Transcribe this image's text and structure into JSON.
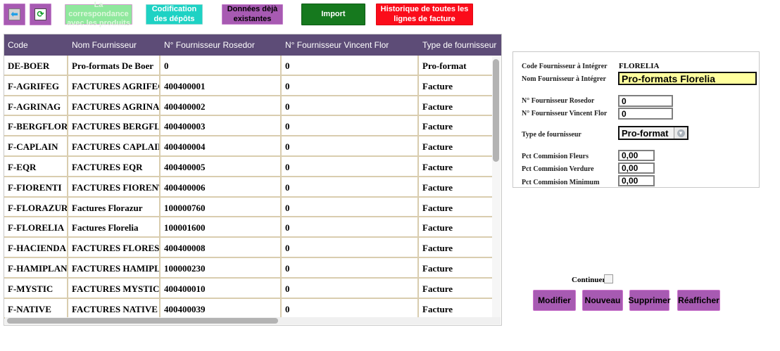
{
  "toolbar": {
    "back_icon": "left-arrow",
    "refresh_icon": "refresh",
    "correspondance_label": "La correspondance avec les produits",
    "codification_label": "Codification des dépôts",
    "donnees_label": "Données dèjà existantes",
    "import_label": "Import",
    "historique_label": "Historique de toutes les lignes de facture"
  },
  "colors": {
    "toolbar_purple": "#a75ab2",
    "toolbar_light_green": "#8fe89d",
    "toolbar_cyan": "#1ed2c4",
    "toolbar_dark_green": "#16791e",
    "toolbar_red": "#fb0c1a",
    "table_header_purple": "#5d4c77",
    "table_grid_tan": "#d9cdaf",
    "nom_field_yellow": "#ffff9e",
    "action_button_purple": "#a75ab2"
  },
  "table": {
    "columns": [
      "Code",
      "Nom Fournisseur",
      "N° Fournisseur Rosedor",
      "N° Fournisseur Vincent Flor",
      "Type de fournisseur"
    ],
    "rows": [
      [
        "DE-BOER",
        "Pro-formats De Boer",
        "0",
        "0",
        "Pro-format"
      ],
      [
        "F-AGRIFEG",
        "FACTURES AGRIFEG",
        "400400001",
        "0",
        "Facture"
      ],
      [
        "F-AGRINAG",
        "FACTURES AGRINAG",
        "400400002",
        "0",
        "Facture"
      ],
      [
        "F-BERGFLOR",
        "FACTURES BERGFLO",
        "400400003",
        "0",
        "Facture"
      ],
      [
        "F-CAPLAIN",
        "FACTURES CAPLAIN",
        "400400004",
        "0",
        "Facture"
      ],
      [
        "F-EQR",
        "FACTURES EQR",
        "400400005",
        "0",
        "Facture"
      ],
      [
        "F-FIORENTI",
        "FACTURES FIORENTI",
        "400400006",
        "0",
        "Facture"
      ],
      [
        "F-FLORAZUR",
        "Factures Florazur",
        "100000760",
        "0",
        "Facture"
      ],
      [
        "F-FLORELIA",
        "Factures Florelia",
        "100001600",
        "0",
        "Facture"
      ],
      [
        "F-HACIENDA",
        "FACTURES FLORES D",
        "400400008",
        "0",
        "Facture"
      ],
      [
        "F-HAMIPLAN",
        "FACTURES HAMIPLA",
        "100000230",
        "0",
        "Facture"
      ],
      [
        "F-MYSTIC",
        "FACTURES MYSTIC",
        "400400010",
        "0",
        "Facture"
      ],
      [
        "F-NATIVE",
        "FACTURES NATIVE B",
        "400400039",
        "0",
        "Facture"
      ]
    ]
  },
  "form": {
    "code_label": "Code Fournisseur à Intégrer",
    "code_value": "FLORELIA",
    "nom_label": "Nom Fournisseur à Intégrer",
    "nom_value": "Pro-formats Florelia",
    "rosedor_label": "N° Fournisseur Rosedor",
    "rosedor_value": "0",
    "vincent_label": "N° Fournisseur Vincent Flor",
    "vincent_value": "0",
    "type_label": "Type de fournisseur",
    "type_value": "Pro-format",
    "pct_fleurs_label": "Pct Commision Fleurs",
    "pct_fleurs_value": "0,00",
    "pct_verdure_label": "Pct Commision Verdure",
    "pct_verdure_value": "0,00",
    "pct_minimum_label": "Pct Commision Minimum",
    "pct_minimum_value": "0,00"
  },
  "actions": {
    "continuer_label": "Continuer ?",
    "continuer_checked": false,
    "modifier_label": "Modifier",
    "nouveau_label": "Nouveau",
    "supprimer_label": "Supprimer",
    "reafficher_label": "Réafficher"
  }
}
